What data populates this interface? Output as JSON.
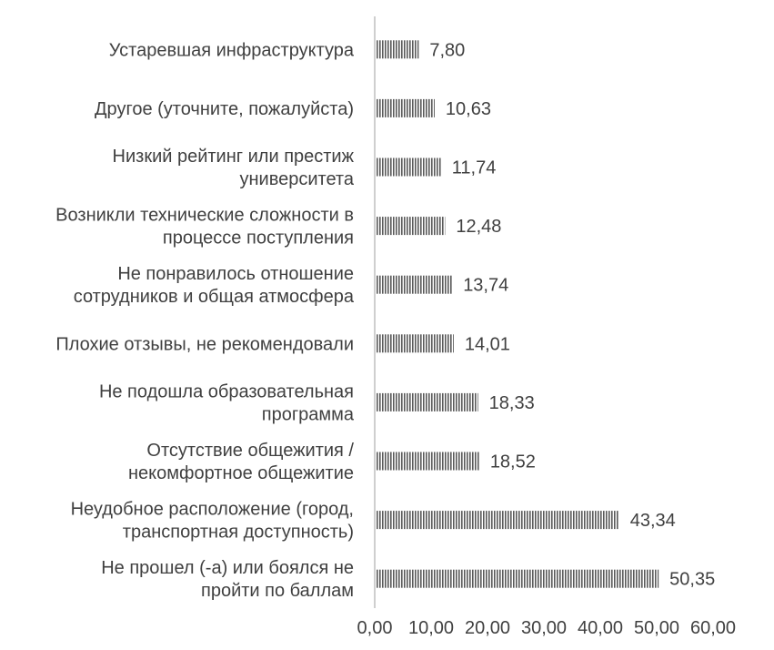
{
  "chart_data": {
    "type": "bar",
    "orientation": "horizontal",
    "categories": [
      "Устаревшая инфраструктура",
      "Другое (уточните, пожалуйста)",
      "Низкий рейтинг или престиж университета",
      "Возникли технические сложности в процессе поступления",
      "Не понравилось отношение сотрудников и общая атмосфера",
      "Плохие отзывы, не рекомендовали",
      "Не подошла образовательная программа",
      "Отсутствие общежития / некомфортное общежитие",
      "Неудобное расположение (город, транспортная доступность)",
      "Не прошел (-а) или боялся не пройти по баллам"
    ],
    "category_lines": [
      [
        "Устаревшая инфраструктура"
      ],
      [
        "Другое (уточните, пожалуйста)"
      ],
      [
        "Низкий рейтинг или престиж",
        "университета"
      ],
      [
        "Возникли технические сложности в",
        "процессе поступления"
      ],
      [
        "Не понравилось отношение",
        "сотрудников и общая атмосфера"
      ],
      [
        "Плохие отзывы, не рекомендовали"
      ],
      [
        "Не подошла образовательная",
        "программа"
      ],
      [
        "Отсутствие общежития /",
        "некомфортное общежитие"
      ],
      [
        "Неудобное расположение (город,",
        "транспортная доступность)"
      ],
      [
        "Не прошел (-а) или боялся не",
        "пройти по баллам"
      ]
    ],
    "values": [
      7.8,
      10.63,
      11.74,
      12.48,
      13.74,
      14.01,
      18.33,
      18.52,
      43.34,
      50.35
    ],
    "value_labels": [
      "7,80",
      "10,63",
      "11,74",
      "12,48",
      "13,74",
      "14,01",
      "18,33",
      "18,52",
      "43,34",
      "50,35"
    ],
    "xlim": [
      0,
      60
    ],
    "xticks": [
      0,
      10,
      20,
      30,
      40,
      50,
      60
    ],
    "xtick_labels": [
      "0,00",
      "10,00",
      "20,00",
      "30,00",
      "40,00",
      "50,00",
      "60,00"
    ],
    "title": "",
    "xlabel": "",
    "ylabel": "",
    "grid": false,
    "legend": "none",
    "bar_pattern": "vertical-hatch",
    "colors": {
      "hatch_dark": "#5a5a5a",
      "hatch_light": "#ffffff",
      "axis": "#bfbfbf",
      "text": "#404040"
    }
  }
}
